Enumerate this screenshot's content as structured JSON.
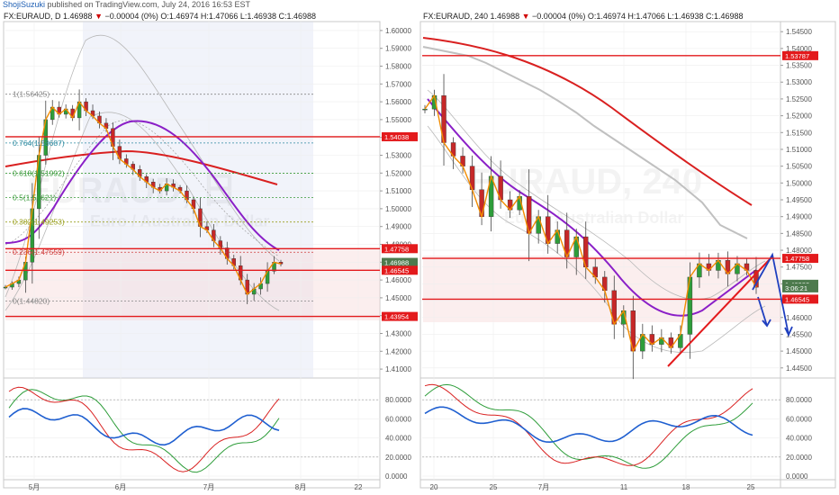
{
  "publisher": {
    "user": "ShojiSuzuki",
    "text": "published on TradingView.com, July 24, 2016 16:53 EST"
  },
  "left": {
    "symbol": "FX:EURAUD, D",
    "last": "1.46988",
    "change": "−0.00004 (0%)",
    "ohlc": "O:1.46974 H:1.47066 L:1.46938 C:1.46988",
    "y_ticks": [
      "1.60000",
      "1.59000",
      "1.58000",
      "1.57000",
      "1.56000",
      "1.55000",
      "1.54000",
      "1.53000",
      "1.52000",
      "1.51000",
      "1.50000",
      "1.49000",
      "1.48000",
      "1.47000",
      "1.46000",
      "1.45000",
      "1.44000",
      "1.43000",
      "1.42000",
      "1.41000"
    ],
    "x_ticks": [
      "5月",
      "6月",
      "7月",
      "8月",
      "22"
    ],
    "osc_ticks": [
      "80.0000",
      "60.0000",
      "40.0000",
      "20.0000",
      "0.0000"
    ],
    "levels": [
      {
        "label": "1.54038",
        "price": 1.54038,
        "color": "#e31a1c"
      },
      {
        "label": "1.47758",
        "price": 1.47758,
        "color": "#e31a1c"
      },
      {
        "label": "1.46988",
        "price": 1.46988,
        "color": "#4d7a4d"
      },
      {
        "label": "1.46545",
        "price": 1.46545,
        "color": "#e31a1c"
      },
      {
        "label": "1.43954",
        "price": 1.43954,
        "color": "#e31a1c"
      }
    ],
    "fib": [
      {
        "label": "1(1.56425)",
        "price": 1.56425,
        "color": "#888888"
      },
      {
        "label": "0.764(1.53687)",
        "price": 1.53687,
        "color": "#2c8aa0"
      },
      {
        "label": "0.618(1.51992)",
        "price": 1.51992,
        "color": "#3a9a3a"
      },
      {
        "label": "0.5(1.50621)",
        "price": 1.50621,
        "color": "#3a9a3a"
      },
      {
        "label": "0.382(1.49253)",
        "price": 1.49253,
        "color": "#9aa020"
      },
      {
        "label": "0.236(1.47559)",
        "price": 1.47559,
        "color": "#d04040"
      },
      {
        "label": "0(1.44820)",
        "price": 1.4482,
        "color": "#888888"
      }
    ],
    "watermark": {
      "big": "EURAUD, 日",
      "small": "Euro / Australian Dollar"
    }
  },
  "right": {
    "symbol": "FX:EURAUD, 240",
    "last": "1.46988",
    "change": "−0.00004 (0%)",
    "ohlc": "O:1.46974 H:1.47066 L:1.46938 C:1.46988",
    "y_ticks": [
      "1.54500",
      "1.54000",
      "1.53500",
      "1.53000",
      "1.52500",
      "1.52000",
      "1.51500",
      "1.51000",
      "1.50500",
      "1.50000",
      "1.49500",
      "1.49000",
      "1.48500",
      "1.48000",
      "1.47500",
      "1.47000",
      "1.46500",
      "1.46000",
      "1.45500",
      "1.45000",
      "1.44500"
    ],
    "x_ticks": [
      "20",
      "25",
      "7月",
      "11",
      "18",
      "25"
    ],
    "osc_ticks": [
      "80.0000",
      "60.0000",
      "40.0000",
      "20.0000",
      "0.0000"
    ],
    "levels": [
      {
        "label": "1.53787",
        "price": 1.53787,
        "color": "#e31a1c"
      },
      {
        "label": "1.47758",
        "price": 1.47758,
        "color": "#e31a1c"
      },
      {
        "label": "1.46988",
        "price": 1.46988,
        "color": "#4d7a4d"
      },
      {
        "label": "3:06:21",
        "price": 1.4688,
        "color": "#4d7a4d"
      },
      {
        "label": "1.46545",
        "price": 1.46545,
        "color": "#e31a1c"
      }
    ],
    "watermark": {
      "big": "EURAUD, 240",
      "small": "Euro / Australian Dollar"
    }
  },
  "chart_data": [
    {
      "type": "candlestick",
      "title": "FX:EURAUD, D",
      "ylim": [
        1.405,
        1.605
      ],
      "x_ticks": [
        "5月",
        "6月",
        "7月",
        "8月",
        "22"
      ],
      "close_path": [
        1.456,
        1.458,
        1.46,
        1.47,
        1.5,
        1.53,
        1.55,
        1.557,
        1.553,
        1.556,
        1.551,
        1.56,
        1.555,
        1.552,
        1.548,
        1.545,
        1.535,
        1.528,
        1.525,
        1.522,
        1.518,
        1.515,
        1.512,
        1.51,
        1.514,
        1.512,
        1.51,
        1.505,
        1.5,
        1.49,
        1.488,
        1.482,
        1.478,
        1.472,
        1.468,
        1.46,
        1.452,
        1.455,
        1.458,
        1.465,
        1.47,
        1.469
      ],
      "horizontal_levels": [
        1.54038,
        1.47758,
        1.46545,
        1.43954
      ],
      "oscillator": {
        "ylim": [
          0,
          100
        ],
        "series": [
          "stoch-k",
          "stoch-d",
          "rsi"
        ]
      }
    },
    {
      "type": "candlestick",
      "title": "FX:EURAUD, 240",
      "ylim": [
        1.442,
        1.548
      ],
      "x_ticks": [
        "20",
        "25",
        "7月",
        "11",
        "18",
        "25"
      ],
      "close_path": [
        1.522,
        1.526,
        1.512,
        1.508,
        1.505,
        1.498,
        1.49,
        1.502,
        1.495,
        1.492,
        1.496,
        1.485,
        1.49,
        1.482,
        1.486,
        1.478,
        1.484,
        1.475,
        1.472,
        1.468,
        1.458,
        1.462,
        1.45,
        1.455,
        1.452,
        1.454,
        1.451,
        1.455,
        1.472,
        1.476,
        1.474,
        1.477,
        1.473,
        1.476,
        1.474,
        1.469
      ],
      "horizontal_levels": [
        1.53787,
        1.47758,
        1.46545
      ],
      "oscillator": {
        "ylim": [
          0,
          100
        ],
        "series": [
          "stoch-k",
          "stoch-d",
          "rsi"
        ]
      }
    }
  ]
}
